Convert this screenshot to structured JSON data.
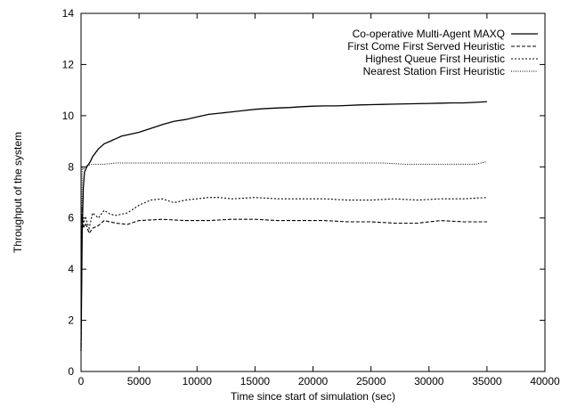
{
  "chart_data": {
    "type": "line",
    "title": "",
    "xlabel": "Time since start of simulation (sec)",
    "ylabel": "Throughput of the system",
    "xlim": [
      0,
      40000
    ],
    "ylim": [
      0,
      14
    ],
    "x_ticks": [
      0,
      5000,
      10000,
      15000,
      20000,
      25000,
      30000,
      35000,
      40000
    ],
    "y_ticks": [
      0,
      2,
      4,
      6,
      8,
      10,
      12,
      14
    ],
    "x_tick_labels": [
      "0",
      "5000",
      "10000",
      "15000",
      "20000",
      "25000",
      "30000",
      "35000",
      "40000"
    ],
    "y_tick_labels": [
      "0",
      "2",
      "4",
      "6",
      "8",
      "10",
      "12",
      "14"
    ],
    "grid": false,
    "legend_position": "top-right",
    "series": [
      {
        "name": "Co-operative Multi-Agent MAXQ",
        "style": "solid",
        "x": [
          0,
          100,
          200,
          300,
          500,
          800,
          1000,
          1500,
          2000,
          2500,
          3000,
          3500,
          4000,
          5000,
          6000,
          7000,
          8000,
          9000,
          10000,
          11000,
          12000,
          13000,
          14000,
          15000,
          16000,
          17000,
          18000,
          19000,
          20000,
          21000,
          22000,
          23000,
          24000,
          25000,
          26000,
          27000,
          28000,
          29000,
          30000,
          31000,
          32000,
          33000,
          34000,
          35000
        ],
        "y": [
          0.8,
          5.5,
          7.2,
          7.8,
          8.0,
          8.2,
          8.4,
          8.7,
          8.9,
          9.0,
          9.1,
          9.2,
          9.25,
          9.35,
          9.5,
          9.65,
          9.78,
          9.85,
          9.95,
          10.05,
          10.1,
          10.15,
          10.2,
          10.25,
          10.28,
          10.3,
          10.32,
          10.35,
          10.37,
          10.38,
          10.38,
          10.4,
          10.42,
          10.43,
          10.44,
          10.45,
          10.46,
          10.47,
          10.48,
          10.49,
          10.5,
          10.5,
          10.52,
          10.55
        ]
      },
      {
        "name": "First Come First Served Heuristic",
        "style": "dashed",
        "x": [
          0,
          100,
          200,
          400,
          700,
          1000,
          1500,
          2000,
          3000,
          4000,
          5000,
          7000,
          9000,
          11000,
          13000,
          15000,
          17000,
          19000,
          21000,
          23000,
          25000,
          27000,
          29000,
          31000,
          33000,
          35000
        ],
        "y": [
          1.0,
          6.1,
          5.6,
          5.8,
          5.4,
          5.6,
          5.7,
          5.9,
          5.8,
          5.75,
          5.9,
          5.95,
          5.9,
          5.9,
          5.95,
          5.95,
          5.9,
          5.9,
          5.9,
          5.85,
          5.85,
          5.8,
          5.8,
          5.9,
          5.85,
          5.85
        ]
      },
      {
        "name": "Highest Queue First Heuristic",
        "style": "dotted",
        "x": [
          0,
          100,
          200,
          400,
          700,
          1000,
          1500,
          2000,
          2500,
          3000,
          4000,
          5000,
          6000,
          7000,
          8000,
          9000,
          10000,
          11000,
          12000,
          13000,
          15000,
          17000,
          19000,
          21000,
          23000,
          25000,
          27000,
          29000,
          31000,
          33000,
          35000
        ],
        "y": [
          1.2,
          6.4,
          5.8,
          6.0,
          5.6,
          6.2,
          6.0,
          6.3,
          6.15,
          6.1,
          6.2,
          6.5,
          6.7,
          6.75,
          6.6,
          6.7,
          6.75,
          6.8,
          6.8,
          6.75,
          6.8,
          6.75,
          6.75,
          6.75,
          6.7,
          6.7,
          6.75,
          6.7,
          6.75,
          6.75,
          6.8
        ]
      },
      {
        "name": "Nearest Station First Heuristic",
        "style": "fine-dotted",
        "x": [
          0,
          100,
          200,
          500,
          1000,
          2000,
          3000,
          4000,
          6000,
          8000,
          10000,
          12000,
          14000,
          16000,
          18000,
          20000,
          22000,
          24000,
          26000,
          28000,
          30000,
          32000,
          34000,
          35000
        ],
        "y": [
          1.0,
          8.0,
          7.9,
          8.05,
          8.1,
          8.1,
          8.15,
          8.15,
          8.15,
          8.15,
          8.15,
          8.15,
          8.15,
          8.15,
          8.15,
          8.15,
          8.15,
          8.15,
          8.15,
          8.1,
          8.1,
          8.1,
          8.1,
          8.2
        ]
      }
    ]
  }
}
